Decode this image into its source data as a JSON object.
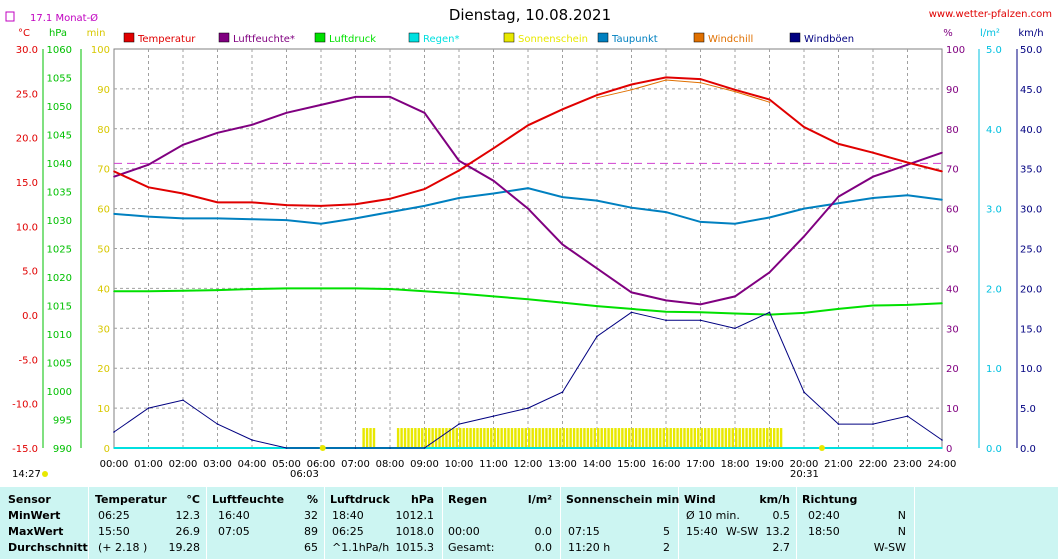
{
  "header": {
    "title": "Dienstag, 10.08.2021",
    "site": "www.wetter-pfalzen.com",
    "monthly_avg": "17.1 Monat-Ø"
  },
  "units_left": [
    "°C",
    "hPa",
    "min"
  ],
  "units_right": [
    "%",
    "l/m²",
    "km/h"
  ],
  "legend": [
    {
      "label": "Temperatur",
      "color": "#e00000"
    },
    {
      "label": "Luftfeuchte*",
      "color": "#800080"
    },
    {
      "label": "Luftdruck",
      "color": "#00e000"
    },
    {
      "label": "Regen*",
      "color": "#00e0e0"
    },
    {
      "label": "Sonnenschein",
      "color": "#e8e800"
    },
    {
      "label": "Taupunkt",
      "color": "#0080c0"
    },
    {
      "label": "Windchill",
      "color": "#e07000"
    },
    {
      "label": "Windböen",
      "color": "#000080"
    }
  ],
  "axes": {
    "temp_ticks": [
      "30.0",
      "25.0",
      "20.0",
      "15.0",
      "10.0",
      "5.0",
      "0.0",
      "-5.0",
      "-10.0",
      "-15.0"
    ],
    "hpa_ticks": [
      "1060",
      "1055",
      "1050",
      "1045",
      "1040",
      "1035",
      "1030",
      "1025",
      "1020",
      "1015",
      "1010",
      "1005",
      "1000",
      "995",
      "990"
    ],
    "min_ticks": [
      "100",
      "90",
      "80",
      "70",
      "60",
      "50",
      "40",
      "30",
      "20",
      "10",
      "0"
    ],
    "pct_ticks": [
      "100",
      "90",
      "80",
      "70",
      "60",
      "50",
      "40",
      "30",
      "20",
      "10",
      "0"
    ],
    "rain_ticks": [
      "5.0",
      "4.0",
      "3.0",
      "2.0",
      "1.0",
      "0.0"
    ],
    "wind_ticks": [
      "50.0",
      "45.0",
      "40.0",
      "35.0",
      "30.0",
      "25.0",
      "20.0",
      "15.0",
      "10.0",
      "5.0",
      "0.0"
    ],
    "time_ticks": [
      "00:00",
      "01:00",
      "02:00",
      "03:00",
      "04:00",
      "05:00",
      "06:00",
      "07:00",
      "08:00",
      "09:00",
      "10:00",
      "11:00",
      "12:00",
      "13:00",
      "14:00",
      "15:00",
      "16:00",
      "17:00",
      "18:00",
      "19:00",
      "20:00",
      "21:00",
      "22:00",
      "23:00",
      "24:00"
    ]
  },
  "markers": {
    "now": "14:27",
    "sunrise": "06:03",
    "sunset": "20:31"
  },
  "chart_data": {
    "type": "line",
    "x_hours": [
      0,
      1,
      2,
      3,
      4,
      5,
      6,
      7,
      8,
      9,
      10,
      11,
      12,
      13,
      14,
      15,
      16,
      17,
      18,
      19,
      20,
      21,
      22,
      23,
      24
    ],
    "series": [
      {
        "name": "Temperatur",
        "unit": "°C",
        "color": "#e00000",
        "values": [
          16.2,
          14.4,
          13.7,
          12.7,
          12.7,
          12.4,
          12.3,
          12.5,
          13.1,
          14.2,
          16.3,
          18.8,
          21.4,
          23.2,
          24.8,
          26.0,
          26.8,
          26.6,
          25.4,
          24.3,
          21.2,
          19.3,
          18.3,
          17.2,
          16.2
        ]
      },
      {
        "name": "Luftfeuchte*",
        "unit": "%",
        "color": "#800080",
        "values": [
          68,
          71,
          76,
          79,
          81,
          84,
          86,
          88,
          88,
          84,
          72,
          67,
          60,
          51,
          45,
          39,
          37,
          36,
          38,
          44,
          53,
          63,
          68,
          71,
          74
        ]
      },
      {
        "name": "Luftdruck",
        "unit": "hPa",
        "color": "#00e000",
        "values": [
          1017.5,
          1017.5,
          1017.6,
          1017.7,
          1017.9,
          1018.0,
          1018.0,
          1018.0,
          1017.9,
          1017.5,
          1017.1,
          1016.6,
          1016.1,
          1015.5,
          1014.9,
          1014.4,
          1013.9,
          1013.8,
          1013.6,
          1013.4,
          1013.7,
          1014.4,
          1015.0,
          1015.1,
          1015.4
        ]
      },
      {
        "name": "Taupunkt",
        "unit": "°C",
        "color": "#0080c0",
        "values": [
          11.4,
          11.1,
          10.9,
          10.9,
          10.8,
          10.7,
          10.3,
          10.9,
          11.6,
          12.3,
          13.2,
          13.7,
          14.3,
          13.3,
          12.9,
          12.1,
          11.6,
          10.5,
          10.3,
          11.0,
          12.0,
          12.6,
          13.2,
          13.5,
          13.0
        ]
      },
      {
        "name": "Windchill",
        "unit": "°C",
        "color": "#e07000",
        "values": [
          null,
          null,
          null,
          null,
          null,
          null,
          null,
          null,
          null,
          null,
          null,
          null,
          null,
          null,
          24.5,
          25.4,
          26.5,
          26.2,
          25.2,
          24.0,
          null,
          null,
          null,
          null,
          null
        ]
      },
      {
        "name": "Windböen",
        "unit": "km/h",
        "color": "#000080",
        "values": [
          2,
          5,
          6,
          3,
          1,
          0,
          0,
          0,
          0,
          0,
          3,
          4,
          5,
          7,
          14,
          17,
          16,
          16,
          15,
          17,
          7,
          3,
          3,
          4,
          1
        ]
      },
      {
        "name": "Regen*",
        "unit": "l/m²",
        "color": "#00e0e0",
        "values": [
          0,
          0,
          0,
          0,
          0,
          0,
          0,
          0,
          0,
          0,
          0,
          0,
          0,
          0,
          0,
          0,
          0,
          0,
          0,
          0,
          0,
          0,
          0,
          0,
          0
        ]
      }
    ],
    "sunshine_blocks": [
      [
        7.2,
        7.5
      ],
      [
        8.2,
        19.35
      ]
    ],
    "sunshine_value_min": 5,
    "monthly_avg_temp": 17.1,
    "ylim_temp": [
      -15,
      30
    ],
    "ylim_hpa": [
      990,
      1060
    ],
    "ylim_pct": [
      0,
      100
    ],
    "ylim_rain": [
      0,
      5
    ],
    "ylim_wind": [
      0,
      50
    ]
  },
  "stats": {
    "headers": {
      "sensor": "Sensor",
      "temp": "Temperatur",
      "temp_unit": "°C",
      "hum": "Luftfeuchte",
      "hum_unit": "%",
      "press": "Luftdruck",
      "press_unit": "hPa",
      "rain": "Regen",
      "rain_unit": "l/m²",
      "sun": "Sonnenschein min",
      "wind": "Wind",
      "wind_unit": "km/h",
      "dir": "Richtung"
    },
    "rows": [
      {
        "label": "MinWert",
        "temp_t": "06:25",
        "temp_v": "12.3",
        "hum_t": "16:40",
        "hum_v": "32",
        "press_t": "18:40",
        "press_v": "1012.1",
        "rain_t": "",
        "rain_v": "",
        "sun_t": "",
        "sun_v": "",
        "wind_t": "Ø 10 min.",
        "wind_d": "",
        "wind_v": "0.5",
        "dir_t": "02:40",
        "dir_v": "N"
      },
      {
        "label": "MaxWert",
        "temp_t": "15:50",
        "temp_v": "26.9",
        "hum_t": "07:05",
        "hum_v": "89",
        "press_t": "06:25",
        "press_v": "1018.0",
        "rain_t": "00:00",
        "rain_v": "0.0",
        "sun_t": "07:15",
        "sun_v": "5",
        "wind_t": "15:40",
        "wind_d": "W-SW",
        "wind_v": "13.2",
        "dir_t": "18:50",
        "dir_v": "N"
      },
      {
        "label": "Durchschnitt",
        "temp_t": "(+ 2.18 )",
        "temp_v": "19.28",
        "hum_t": "",
        "hum_v": "65",
        "press_t": "^1.1hPa/h",
        "press_v": "1015.3",
        "rain_t": "Gesamt:",
        "rain_v": "0.0",
        "sun_t": "11:20 h",
        "sun_v": "2",
        "wind_t": "",
        "wind_d": "",
        "wind_v": "2.7",
        "dir_t": "",
        "dir_v": "W-SW"
      }
    ]
  }
}
